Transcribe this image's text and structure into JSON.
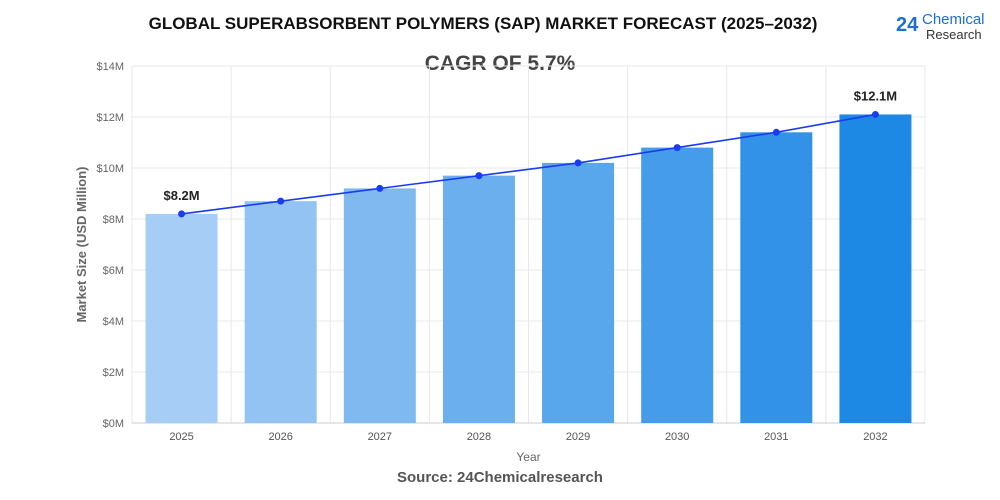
{
  "title": "GLOBAL SUPERABSORBENT POLYMERS (SAP) MARKET FORECAST (2025–2032)",
  "subtitle": "CAGR OF 5.7%",
  "source": "Source: 24Chemicalresearch",
  "logo": {
    "number": "24",
    "line1": "Chemical",
    "line2": "Research"
  },
  "chart_data": {
    "type": "bar",
    "categories": [
      "2025",
      "2026",
      "2027",
      "2028",
      "2029",
      "2030",
      "2031",
      "2032"
    ],
    "values": [
      8.2,
      8.7,
      9.2,
      9.7,
      10.2,
      10.8,
      11.4,
      12.1
    ],
    "overlay_line": true,
    "data_labels": [
      {
        "index": 0,
        "text": "$8.2M"
      },
      {
        "index": 7,
        "text": "$12.1M"
      }
    ],
    "xlabel": "Year",
    "ylabel": "Market Size (USD Million)",
    "ylim": [
      0,
      14
    ],
    "yticks": [
      "$0M",
      "$2M",
      "$4M",
      "$6M",
      "$8M",
      "$10M",
      "$12M",
      "$14M"
    ],
    "grid": true,
    "colors": {
      "bar_start": "#a6cdf5",
      "bar_end": "#1e88e5",
      "line": "#1a3cf0"
    }
  }
}
